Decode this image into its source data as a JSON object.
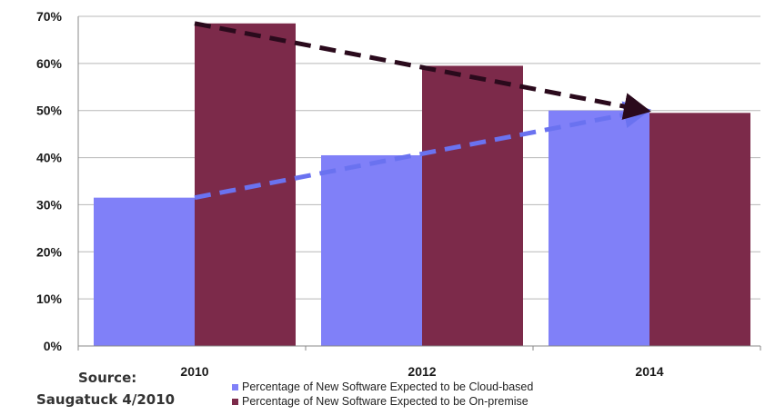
{
  "chart_data": {
    "type": "bar",
    "categories": [
      "2010",
      "2012",
      "2014"
    ],
    "series": [
      {
        "name": "Percentage of New Software Expected to be Cloud-based",
        "values": [
          31.5,
          40.5,
          50
        ],
        "color": "#8080f8"
      },
      {
        "name": "Percentage of New Software Expected to be On-premise",
        "values": [
          68.5,
          59.5,
          49.5
        ],
        "color": "#7c2a4a"
      }
    ],
    "ylim": [
      0,
      70
    ],
    "y_ticks": [
      "0%",
      "10%",
      "20%",
      "30%",
      "40%",
      "50%",
      "60%",
      "70%"
    ],
    "grid": true,
    "legend_position": "bottom",
    "trend_arrows": [
      {
        "series": "Cloud-based",
        "style": "dashed",
        "color": "#6a72f0",
        "from": [
          "2010",
          31.5
        ],
        "to": [
          "2014",
          50
        ]
      },
      {
        "series": "On-premise",
        "style": "dashed",
        "color": "#2a0a1c",
        "from": [
          "2010",
          68.5
        ],
        "to": [
          "2014",
          50
        ]
      }
    ]
  },
  "source": {
    "label": "Source:",
    "text": "Saugatuck 4/2010"
  }
}
